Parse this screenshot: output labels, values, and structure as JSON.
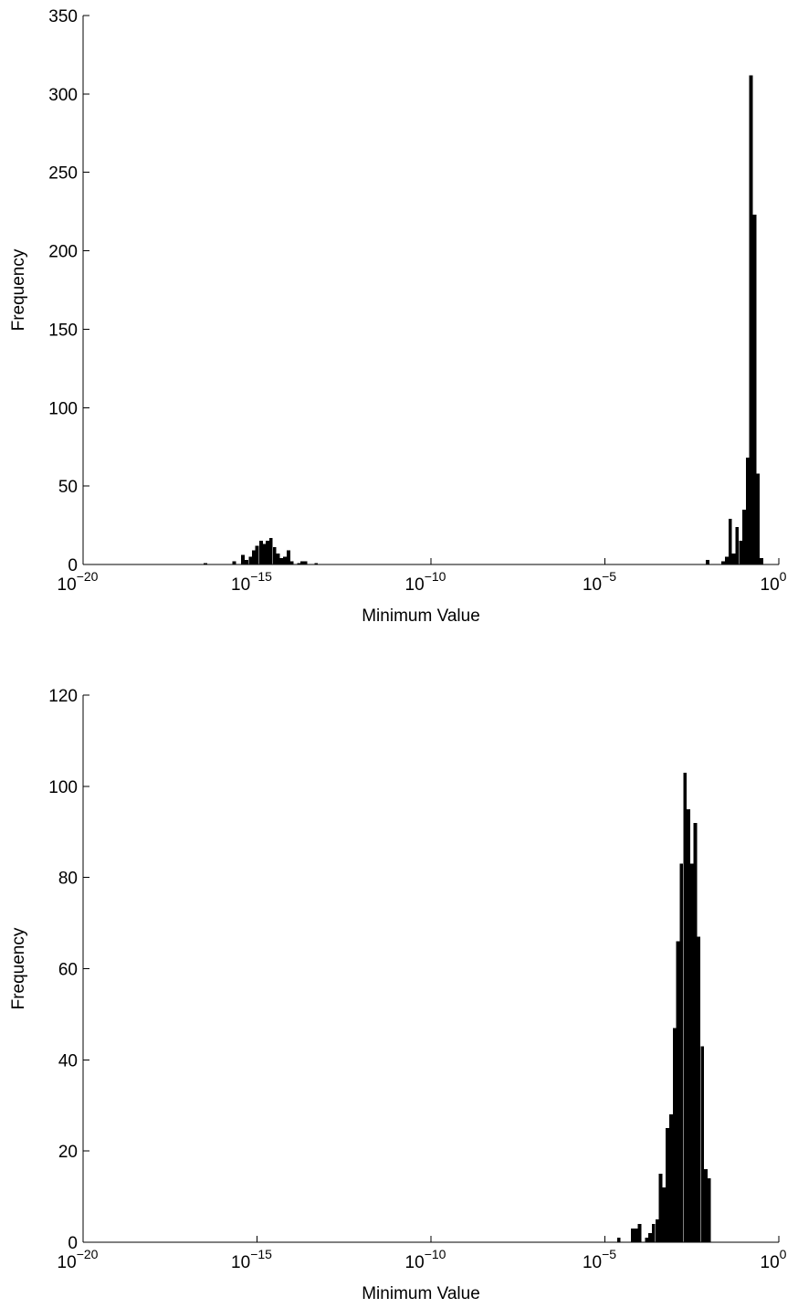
{
  "chart_data": [
    {
      "type": "bar",
      "title": "",
      "xlabel": "Minimum Value",
      "ylabel": "Frequency",
      "xscale": "log",
      "xlim": [
        1e-20,
        1
      ],
      "ylim": [
        0,
        350
      ],
      "grid": false,
      "xticks": [
        {
          "value": 1e-20,
          "base": "10",
          "exp": "−20"
        },
        {
          "value": 1e-15,
          "base": "10",
          "exp": "−15"
        },
        {
          "value": 1e-10,
          "base": "10",
          "exp": "−10"
        },
        {
          "value": 1e-05,
          "base": "10",
          "exp": "−5"
        },
        {
          "value": 1,
          "base": "10",
          "exp": "0"
        }
      ],
      "yticks": [
        "0",
        "50",
        "100",
        "150",
        "200",
        "250",
        "300",
        "350"
      ],
      "bins": [
        {
          "x": 3.3e-17,
          "count": 1
        },
        {
          "x": 2.2e-16,
          "count": 2
        },
        {
          "x": 3.9e-16,
          "count": 6
        },
        {
          "x": 5e-16,
          "count": 3
        },
        {
          "x": 6.5e-16,
          "count": 5
        },
        {
          "x": 8e-16,
          "count": 9
        },
        {
          "x": 1e-15,
          "count": 12
        },
        {
          "x": 1.3e-15,
          "count": 15
        },
        {
          "x": 1.6e-15,
          "count": 13
        },
        {
          "x": 2e-15,
          "count": 15
        },
        {
          "x": 2.5e-15,
          "count": 17
        },
        {
          "x": 3.2e-15,
          "count": 11
        },
        {
          "x": 4e-15,
          "count": 7
        },
        {
          "x": 5e-15,
          "count": 4
        },
        {
          "x": 6.3e-15,
          "count": 5
        },
        {
          "x": 8e-15,
          "count": 9
        },
        {
          "x": 1e-14,
          "count": 2
        },
        {
          "x": 1.6e-14,
          "count": 1
        },
        {
          "x": 2e-14,
          "count": 2
        },
        {
          "x": 2.5e-14,
          "count": 2
        },
        {
          "x": 5e-14,
          "count": 1
        },
        {
          "x": 0.0089,
          "count": 3
        },
        {
          "x": 0.025,
          "count": 2
        },
        {
          "x": 0.032,
          "count": 5
        },
        {
          "x": 0.04,
          "count": 29
        },
        {
          "x": 0.05,
          "count": 7
        },
        {
          "x": 0.063,
          "count": 24
        },
        {
          "x": 0.08,
          "count": 15
        },
        {
          "x": 0.1,
          "count": 35
        },
        {
          "x": 0.126,
          "count": 68
        },
        {
          "x": 0.158,
          "count": 312
        },
        {
          "x": 0.2,
          "count": 223
        },
        {
          "x": 0.25,
          "count": 58
        },
        {
          "x": 0.316,
          "count": 4
        }
      ]
    },
    {
      "type": "bar",
      "title": "",
      "xlabel": "Minimum Value",
      "ylabel": "Frequency",
      "xscale": "log",
      "xlim": [
        1e-20,
        1
      ],
      "ylim": [
        0,
        120
      ],
      "grid": false,
      "xticks": [
        {
          "value": 1e-20,
          "base": "10",
          "exp": "−20"
        },
        {
          "value": 1e-15,
          "base": "10",
          "exp": "−15"
        },
        {
          "value": 1e-10,
          "base": "10",
          "exp": "−10"
        },
        {
          "value": 1e-05,
          "base": "10",
          "exp": "−5"
        },
        {
          "value": 1,
          "base": "10",
          "exp": "0"
        }
      ],
      "yticks": [
        "0",
        "20",
        "40",
        "60",
        "80",
        "100",
        "120"
      ],
      "bins": [
        {
          "x": 2.5e-05,
          "count": 1
        },
        {
          "x": 6.3e-05,
          "count": 3
        },
        {
          "x": 8e-05,
          "count": 3
        },
        {
          "x": 0.0001,
          "count": 4
        },
        {
          "x": 0.00016,
          "count": 1
        },
        {
          "x": 0.0002,
          "count": 2
        },
        {
          "x": 0.00025,
          "count": 4
        },
        {
          "x": 0.00032,
          "count": 5
        },
        {
          "x": 0.0004,
          "count": 15
        },
        {
          "x": 0.0005,
          "count": 12
        },
        {
          "x": 0.00063,
          "count": 25
        },
        {
          "x": 0.0008,
          "count": 28
        },
        {
          "x": 0.001,
          "count": 47
        },
        {
          "x": 0.00126,
          "count": 66
        },
        {
          "x": 0.00158,
          "count": 83
        },
        {
          "x": 0.002,
          "count": 103
        },
        {
          "x": 0.0025,
          "count": 95
        },
        {
          "x": 0.0032,
          "count": 83
        },
        {
          "x": 0.004,
          "count": 92
        },
        {
          "x": 0.005,
          "count": 67
        },
        {
          "x": 0.0063,
          "count": 43
        },
        {
          "x": 0.008,
          "count": 16
        },
        {
          "x": 0.01,
          "count": 14
        }
      ]
    }
  ]
}
